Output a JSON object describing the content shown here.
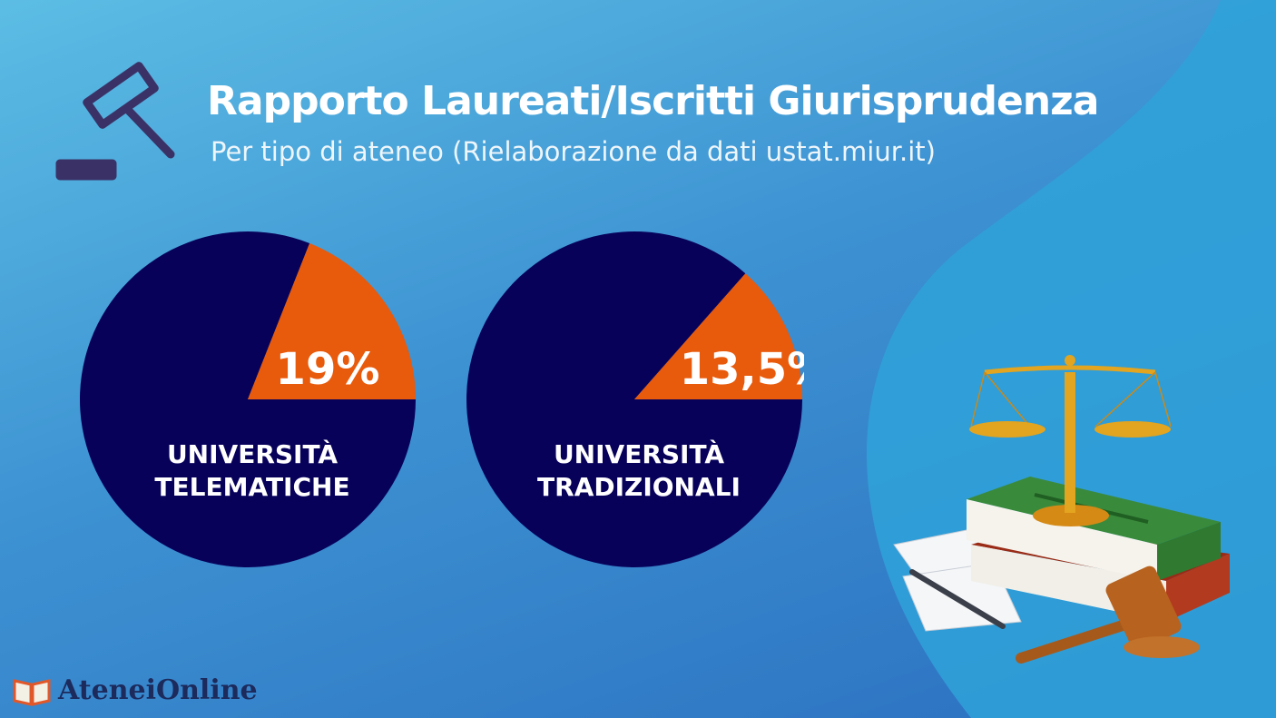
{
  "header": {
    "title": "Rapporto Laureati/Iscritti Giurisprudenza",
    "subtitle": "Per tipo di ateneo (Rielaborazione da dati ustat.miur.it)"
  },
  "brand": {
    "name": "AteneiOnline"
  },
  "colors": {
    "pie_base": "#07015a",
    "pie_highlight": "#e85a0c",
    "text": "#ffffff"
  },
  "icons": [
    "gavel-icon",
    "scales-books-illustration",
    "book-logo-icon"
  ],
  "chart_data": [
    {
      "type": "pie",
      "label_lines": [
        "UNIVERSITÀ",
        "TELEMATICHE"
      ],
      "value_label": "19%",
      "values": [
        19,
        81
      ]
    },
    {
      "type": "pie",
      "label_lines": [
        "UNIVERSITÀ",
        "TRADIZIONALI"
      ],
      "value_label": "13,5%",
      "values": [
        13.5,
        86.5
      ]
    }
  ]
}
